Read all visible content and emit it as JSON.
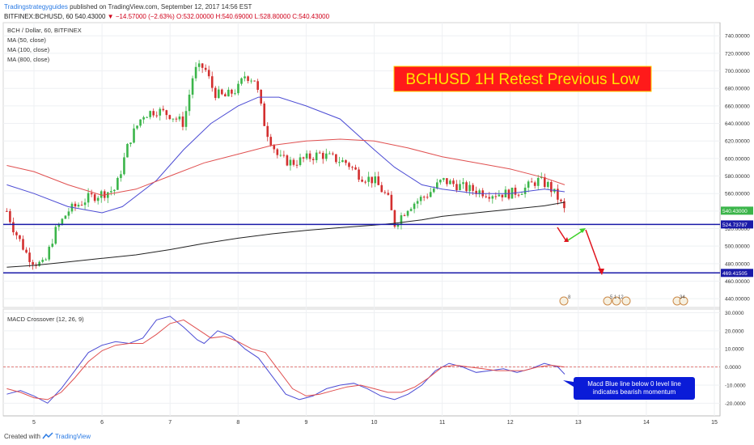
{
  "header": {
    "brand": "Tradingstrategyguides",
    "published": "published on TradingView.com, September 12, 2017 14:56 EST",
    "symbol": "BITFINEX:BCHUSD, 60",
    "last": "540.43000",
    "change": "−14.57000 (−2.63%)",
    "ohlc": "O:532.00000 H:540.69000 L:528.80000 C:540.43000"
  },
  "legend": [
    "BCH / Dollar, 60, BITFINEX",
    "MA (50, close)",
    "MA (100, close)",
    "MA (800, close)"
  ],
  "title_box": "BCHUSD 1H Retest Previous Low",
  "annotation": "Macd Blue line below 0 level line indicates bearish momentum",
  "macd_label": "MACD Crossover (12, 26, 9)",
  "footer": {
    "created": "Created with",
    "tradingview": "TradingView"
  },
  "chart_data": [
    {
      "type": "candlestick",
      "x_ticks": [
        "5",
        "6",
        "7",
        "8",
        "9",
        "10",
        "11",
        "12",
        "13",
        "14",
        "15"
      ],
      "y_ticks": [
        "740.00000",
        "720.00000",
        "700.00000",
        "680.00000",
        "660.00000",
        "640.00000",
        "620.00000",
        "600.00000",
        "580.00000",
        "560.00000",
        "540.00000",
        "520.00000",
        "500.00000",
        "480.00000",
        "460.00000",
        "440.00000"
      ],
      "ylim": [
        430,
        755
      ],
      "price_labels": [
        "540.43000",
        "524.73787",
        "469.41505"
      ],
      "levels": [
        524.73787,
        469.41505
      ],
      "close_path": [
        [
          4.6,
          540
        ],
        [
          4.7,
          520
        ],
        [
          4.8,
          505
        ],
        [
          4.9,
          490
        ],
        [
          5.0,
          482
        ],
        [
          5.15,
          478
        ],
        [
          5.3,
          515
        ],
        [
          5.5,
          540
        ],
        [
          5.8,
          555
        ],
        [
          6.0,
          560
        ],
        [
          6.2,
          565
        ],
        [
          6.4,
          620
        ],
        [
          6.6,
          650
        ],
        [
          6.8,
          655
        ],
        [
          7.0,
          650
        ],
        [
          7.2,
          640
        ],
        [
          7.35,
          700
        ],
        [
          7.5,
          705
        ],
        [
          7.65,
          675
        ],
        [
          7.8,
          670
        ],
        [
          8.0,
          680
        ],
        [
          8.1,
          695
        ],
        [
          8.25,
          690
        ],
        [
          8.4,
          635
        ],
        [
          8.6,
          600
        ],
        [
          8.8,
          595
        ],
        [
          9.0,
          600
        ],
        [
          9.2,
          605
        ],
        [
          9.4,
          600
        ],
        [
          9.6,
          595
        ],
        [
          9.8,
          580
        ],
        [
          10.0,
          575
        ],
        [
          10.2,
          555
        ],
        [
          10.3,
          525
        ],
        [
          10.5,
          545
        ],
        [
          10.8,
          560
        ],
        [
          11.0,
          575
        ],
        [
          11.2,
          570
        ],
        [
          11.4,
          565
        ],
        [
          11.7,
          560
        ],
        [
          12.0,
          560
        ],
        [
          12.2,
          565
        ],
        [
          12.4,
          575
        ],
        [
          12.55,
          570
        ],
        [
          12.7,
          555
        ],
        [
          12.8,
          540
        ]
      ],
      "ma": [
        {
          "name": "MA (50, close)",
          "color": "#4c4cd4",
          "points": [
            [
              4.6,
              570
            ],
            [
              5.0,
              560
            ],
            [
              5.5,
              545
            ],
            [
              6.0,
              538
            ],
            [
              6.3,
              545
            ],
            [
              6.8,
              575
            ],
            [
              7.2,
              610
            ],
            [
              7.6,
              640
            ],
            [
              8.0,
              660
            ],
            [
              8.3,
              670
            ],
            [
              8.6,
              670
            ],
            [
              9.0,
              660
            ],
            [
              9.5,
              645
            ],
            [
              10.0,
              610
            ],
            [
              10.3,
              590
            ],
            [
              10.7,
              570
            ],
            [
              11.0,
              565
            ],
            [
              11.5,
              560
            ],
            [
              12.0,
              560
            ],
            [
              12.5,
              565
            ],
            [
              12.8,
              562
            ]
          ]
        },
        {
          "name": "MA (100, close)",
          "color": "#e05050",
          "points": [
            [
              4.6,
              592
            ],
            [
              5.0,
              585
            ],
            [
              5.5,
              570
            ],
            [
              6.0,
              558
            ],
            [
              6.5,
              565
            ],
            [
              7.0,
              580
            ],
            [
              7.5,
              595
            ],
            [
              8.0,
              605
            ],
            [
              8.5,
              615
            ],
            [
              9.0,
              620
            ],
            [
              9.5,
              622
            ],
            [
              10.0,
              620
            ],
            [
              10.5,
              612
            ],
            [
              11.0,
              602
            ],
            [
              11.5,
              595
            ],
            [
              12.0,
              588
            ],
            [
              12.5,
              578
            ],
            [
              12.8,
              570
            ]
          ]
        },
        {
          "name": "MA (800, close)",
          "color": "#222222",
          "points": [
            [
              4.6,
              476
            ],
            [
              5.0,
              478
            ],
            [
              5.5,
              482
            ],
            [
              6.0,
              486
            ],
            [
              6.5,
              490
            ],
            [
              7.0,
              496
            ],
            [
              7.5,
              503
            ],
            [
              8.0,
              509
            ],
            [
              8.5,
              514
            ],
            [
              9.0,
              518
            ],
            [
              9.5,
              521
            ],
            [
              10.0,
              524
            ],
            [
              10.3,
              526
            ],
            [
              10.7,
              530
            ],
            [
              11.0,
              534
            ],
            [
              11.5,
              538
            ],
            [
              12.0,
              542
            ],
            [
              12.5,
              546
            ],
            [
              12.8,
              550
            ]
          ]
        }
      ]
    },
    {
      "type": "line",
      "title": "MACD Crossover (12, 26, 9)",
      "y_ticks": [
        "30.0000",
        "20.0000",
        "10.0000",
        "0.0000",
        "-10.0000",
        "-20.0000"
      ],
      "ylim": [
        -27,
        32
      ],
      "series": [
        {
          "color": "#4c4cd4",
          "points": [
            [
              4.6,
              -15
            ],
            [
              4.8,
              -13
            ],
            [
              5.0,
              -16
            ],
            [
              5.2,
              -20
            ],
            [
              5.4,
              -12
            ],
            [
              5.6,
              -2
            ],
            [
              5.8,
              8
            ],
            [
              6.0,
              12
            ],
            [
              6.2,
              14
            ],
            [
              6.4,
              13
            ],
            [
              6.6,
              16
            ],
            [
              6.8,
              26
            ],
            [
              7.0,
              28
            ],
            [
              7.2,
              22
            ],
            [
              7.4,
              15
            ],
            [
              7.5,
              13
            ],
            [
              7.7,
              20
            ],
            [
              7.9,
              17
            ],
            [
              8.1,
              10
            ],
            [
              8.3,
              5
            ],
            [
              8.5,
              -5
            ],
            [
              8.7,
              -15
            ],
            [
              8.9,
              -18
            ],
            [
              9.1,
              -16
            ],
            [
              9.3,
              -12
            ],
            [
              9.5,
              -10
            ],
            [
              9.7,
              -9
            ],
            [
              9.9,
              -12
            ],
            [
              10.1,
              -16
            ],
            [
              10.3,
              -18
            ],
            [
              10.5,
              -15
            ],
            [
              10.7,
              -10
            ],
            [
              10.9,
              -2
            ],
            [
              11.1,
              2
            ],
            [
              11.3,
              0
            ],
            [
              11.5,
              -3
            ],
            [
              11.7,
              -2
            ],
            [
              11.9,
              -1
            ],
            [
              12.1,
              -3
            ],
            [
              12.3,
              -1
            ],
            [
              12.5,
              2
            ],
            [
              12.7,
              0
            ],
            [
              12.8,
              -4
            ]
          ]
        },
        {
          "color": "#e05050",
          "points": [
            [
              4.6,
              -12
            ],
            [
              4.8,
              -14
            ],
            [
              5.0,
              -17
            ],
            [
              5.2,
              -18
            ],
            [
              5.4,
              -14
            ],
            [
              5.6,
              -6
            ],
            [
              5.8,
              3
            ],
            [
              6.0,
              9
            ],
            [
              6.2,
              12
            ],
            [
              6.4,
              13
            ],
            [
              6.6,
              13
            ],
            [
              6.8,
              18
            ],
            [
              7.0,
              24
            ],
            [
              7.2,
              26
            ],
            [
              7.4,
              21
            ],
            [
              7.6,
              16
            ],
            [
              7.8,
              17
            ],
            [
              8.0,
              14
            ],
            [
              8.2,
              10
            ],
            [
              8.4,
              8
            ],
            [
              8.6,
              -2
            ],
            [
              8.8,
              -12
            ],
            [
              9.0,
              -16
            ],
            [
              9.2,
              -15
            ],
            [
              9.4,
              -13
            ],
            [
              9.6,
              -11
            ],
            [
              9.8,
              -10
            ],
            [
              10.0,
              -12
            ],
            [
              10.2,
              -14
            ],
            [
              10.4,
              -14
            ],
            [
              10.6,
              -11
            ],
            [
              10.8,
              -6
            ],
            [
              11.0,
              0
            ],
            [
              11.2,
              1
            ],
            [
              11.4,
              0
            ],
            [
              11.6,
              -1
            ],
            [
              11.8,
              -2
            ],
            [
              12.0,
              -2
            ],
            [
              12.2,
              -2
            ],
            [
              12.4,
              0
            ],
            [
              12.6,
              1
            ],
            [
              12.8,
              0
            ]
          ]
        }
      ]
    }
  ]
}
